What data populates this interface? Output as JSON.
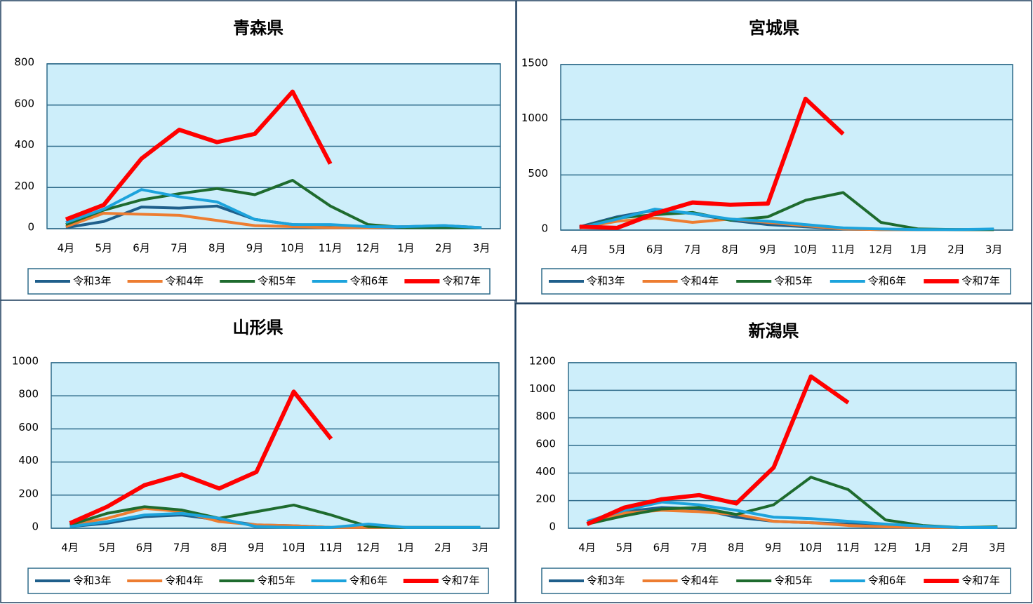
{
  "chart_data": [
    {
      "type": "line",
      "title": "青森県",
      "categories": [
        "4月",
        "5月",
        "6月",
        "7月",
        "8月",
        "9月",
        "10月",
        "11月",
        "12月",
        "1月",
        "2月",
        "3月"
      ],
      "ylim": [
        0,
        800
      ],
      "yticks": [
        0,
        200,
        400,
        600,
        800
      ],
      "grid": true,
      "legend": "bottom",
      "series": [
        {
          "name": "令和3年",
          "color": "#1f5f8b",
          "values": [
            5,
            35,
            105,
            100,
            110,
            45,
            20,
            15,
            5,
            10,
            15,
            5
          ]
        },
        {
          "name": "令和4年",
          "color": "#ed7d31",
          "values": [
            10,
            75,
            70,
            65,
            40,
            15,
            10,
            5,
            5,
            10,
            10,
            5
          ]
        },
        {
          "name": "令和5年",
          "color": "#1e6b2e",
          "values": [
            20,
            90,
            140,
            170,
            195,
            165,
            235,
            110,
            20,
            5,
            5,
            5
          ]
        },
        {
          "name": "令和6年",
          "color": "#1ca3dc",
          "values": [
            30,
            95,
            190,
            155,
            130,
            45,
            20,
            20,
            10,
            10,
            15,
            5
          ]
        },
        {
          "name": "令和7年",
          "color": "#ff0000",
          "values": [
            45,
            115,
            340,
            480,
            420,
            460,
            665,
            315,
            null,
            null,
            null,
            null
          ]
        }
      ]
    },
    {
      "type": "line",
      "title": "宮城県",
      "categories": [
        "4月",
        "5月",
        "6月",
        "7月",
        "8月",
        "9月",
        "10月",
        "11月",
        "12月",
        "1月",
        "2月",
        "3月"
      ],
      "ylim": [
        0,
        1500
      ],
      "yticks": [
        0,
        500,
        1000,
        1500
      ],
      "grid": true,
      "legend": "bottom",
      "series": [
        {
          "name": "令和3年",
          "color": "#1f5f8b",
          "values": [
            30,
            120,
            180,
            150,
            90,
            50,
            30,
            10,
            5,
            5,
            5,
            5
          ]
        },
        {
          "name": "令和4年",
          "color": "#ed7d31",
          "values": [
            20,
            80,
            110,
            70,
            100,
            70,
            40,
            10,
            5,
            5,
            5,
            5
          ]
        },
        {
          "name": "令和5年",
          "color": "#1e6b2e",
          "values": [
            20,
            110,
            140,
            160,
            90,
            120,
            270,
            340,
            70,
            10,
            5,
            5
          ]
        },
        {
          "name": "令和6年",
          "color": "#1ca3dc",
          "values": [
            20,
            100,
            190,
            150,
            100,
            80,
            50,
            20,
            10,
            5,
            5,
            10
          ]
        },
        {
          "name": "令和7年",
          "color": "#ff0000",
          "values": [
            30,
            20,
            150,
            250,
            230,
            240,
            1190,
            870,
            null,
            null,
            null,
            null
          ]
        }
      ]
    },
    {
      "type": "line",
      "title": "山形県",
      "categories": [
        "4月",
        "5月",
        "6月",
        "7月",
        "8月",
        "9月",
        "10月",
        "11月",
        "12月",
        "1月",
        "2月",
        "3月"
      ],
      "ylim": [
        0,
        1000
      ],
      "yticks": [
        0,
        200,
        400,
        600,
        800,
        1000
      ],
      "grid": true,
      "legend": "bottom",
      "series": [
        {
          "name": "令和3年",
          "color": "#1f5f8b",
          "values": [
            10,
            30,
            70,
            80,
            50,
            20,
            15,
            5,
            5,
            5,
            5,
            5
          ]
        },
        {
          "name": "令和4年",
          "color": "#ed7d31",
          "values": [
            20,
            60,
            120,
            100,
            40,
            20,
            15,
            5,
            5,
            5,
            5,
            5
          ]
        },
        {
          "name": "令和5年",
          "color": "#1e6b2e",
          "values": [
            20,
            90,
            130,
            110,
            60,
            100,
            140,
            80,
            10,
            5,
            5,
            5
          ]
        },
        {
          "name": "令和6年",
          "color": "#1ca3dc",
          "values": [
            10,
            40,
            80,
            90,
            60,
            10,
            5,
            5,
            25,
            5,
            5,
            5
          ]
        },
        {
          "name": "令和7年",
          "color": "#ff0000",
          "values": [
            30,
            130,
            260,
            325,
            240,
            340,
            825,
            540,
            null,
            null,
            null,
            null
          ]
        }
      ]
    },
    {
      "type": "line",
      "title": "新潟県",
      "categories": [
        "4月",
        "5月",
        "6月",
        "7月",
        "8月",
        "9月",
        "10月",
        "11月",
        "12月",
        "1月",
        "2月",
        "3月"
      ],
      "ylim": [
        0,
        1200
      ],
      "yticks": [
        0,
        200,
        400,
        600,
        800,
        1000,
        1200
      ],
      "grid": true,
      "legend": "bottom",
      "series": [
        {
          "name": "令和3年",
          "color": "#1f5f8b",
          "values": [
            30,
            120,
            150,
            140,
            80,
            50,
            40,
            30,
            20,
            10,
            5,
            5
          ]
        },
        {
          "name": "令和4年",
          "color": "#ed7d31",
          "values": [
            30,
            110,
            130,
            120,
            100,
            50,
            40,
            20,
            10,
            5,
            5,
            5
          ]
        },
        {
          "name": "令和5年",
          "color": "#1e6b2e",
          "values": [
            30,
            90,
            140,
            150,
            100,
            170,
            370,
            280,
            60,
            20,
            5,
            10
          ]
        },
        {
          "name": "令和6年",
          "color": "#1ca3dc",
          "values": [
            50,
            130,
            190,
            170,
            130,
            80,
            70,
            50,
            30,
            15,
            5,
            5
          ]
        },
        {
          "name": "令和7年",
          "color": "#ff0000",
          "values": [
            30,
            150,
            210,
            240,
            180,
            440,
            1100,
            910,
            null,
            null,
            null,
            null
          ]
        }
      ]
    }
  ]
}
